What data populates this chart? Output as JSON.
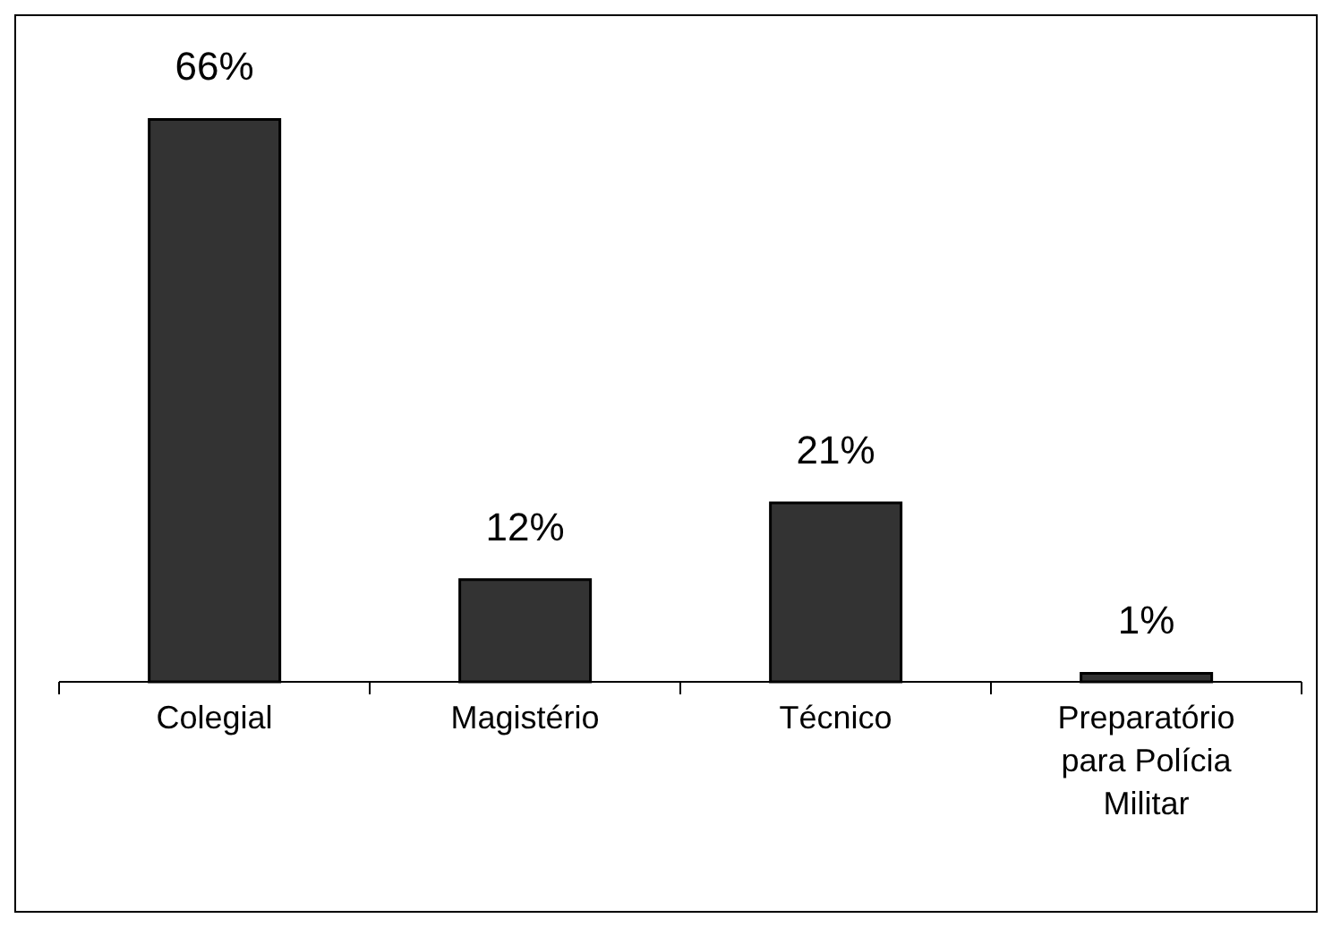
{
  "chart_data": {
    "type": "bar",
    "categories": [
      "Colegial",
      "Magistério",
      "Técnico",
      "Preparatório para Polícia Militar"
    ],
    "values": [
      66,
      12,
      21,
      1
    ],
    "value_labels": [
      "66%",
      "12%",
      "21%",
      "1%"
    ],
    "color": "#333333"
  }
}
